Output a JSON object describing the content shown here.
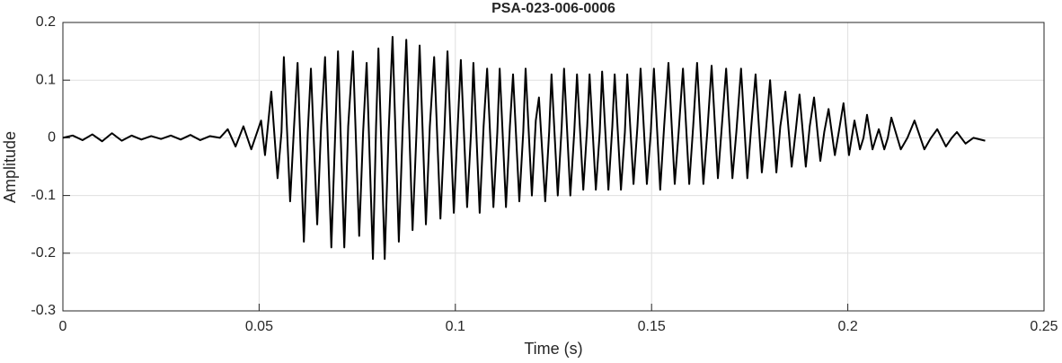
{
  "chart_data": {
    "type": "line",
    "title": "PSA-023-006-0006",
    "xlabel": "Time (s)",
    "ylabel": "Amplitude",
    "color": "#000000",
    "grid": true,
    "xlim": [
      0,
      0.25
    ],
    "xticks": [
      0,
      0.05,
      0.1,
      0.15,
      0.2,
      0.25
    ],
    "ylim": [
      -0.3,
      0.2
    ],
    "yticks": [
      -0.3,
      -0.2,
      -0.1,
      0,
      0.1,
      0.2
    ],
    "x": [
      0,
      0.0025,
      0.005,
      0.0075,
      0.01,
      0.0125,
      0.015,
      0.0175,
      0.02,
      0.0225,
      0.025,
      0.0275,
      0.03,
      0.0325,
      0.035,
      0.0375,
      0.04,
      0.042,
      0.044,
      0.046,
      0.048,
      0.0505,
      0.0515,
      0.0531,
      0.0547,
      0.0557,
      0.0563,
      0.0579,
      0.0589,
      0.0598,
      0.0614,
      0.0624,
      0.0632,
      0.0648,
      0.0658,
      0.0668,
      0.0684,
      0.0694,
      0.0701,
      0.0717,
      0.0727,
      0.0739,
      0.0755,
      0.0765,
      0.0774,
      0.079,
      0.0798,
      0.0804,
      0.082,
      0.083,
      0.084,
      0.0856,
      0.0866,
      0.0875,
      0.0891,
      0.0901,
      0.0909,
      0.0925,
      0.0935,
      0.0946,
      0.0962,
      0.0972,
      0.098,
      0.0996,
      0.1006,
      0.1014,
      0.103,
      0.104,
      0.1046,
      0.1062,
      0.1072,
      0.1081,
      0.1097,
      0.1107,
      0.1113,
      0.1129,
      0.1139,
      0.1147,
      0.1163,
      0.1173,
      0.1179,
      0.1195,
      0.1205,
      0.1213,
      0.1229,
      0.1239,
      0.1245,
      0.1261,
      0.1271,
      0.1277,
      0.1293,
      0.1303,
      0.131,
      0.1326,
      0.1336,
      0.1342,
      0.1358,
      0.1368,
      0.1374,
      0.139,
      0.14,
      0.1406,
      0.1422,
      0.1432,
      0.1438,
      0.1454,
      0.1464,
      0.1472,
      0.1488,
      0.1498,
      0.1506,
      0.1522,
      0.1532,
      0.1543,
      0.1559,
      0.1569,
      0.158,
      0.1596,
      0.1606,
      0.1616,
      0.1632,
      0.1642,
      0.1653,
      0.1669,
      0.1679,
      0.169,
      0.1706,
      0.1716,
      0.1728,
      0.1744,
      0.1754,
      0.1765,
      0.1781,
      0.1791,
      0.1802,
      0.1818,
      0.1828,
      0.1841,
      0.1857,
      0.1867,
      0.1877,
      0.1893,
      0.1903,
      0.1914,
      0.193,
      0.194,
      0.1951,
      0.1967,
      0.1977,
      0.1989,
      0.2003,
      0.201,
      0.2017,
      0.2031,
      0.204,
      0.2049,
      0.2063,
      0.2072,
      0.2079,
      0.2093,
      0.2102,
      0.2111,
      0.2135,
      0.2152,
      0.217,
      0.2195,
      0.2212,
      0.2228,
      0.225,
      0.2265,
      0.2278,
      0.23,
      0.232,
      0.235
    ],
    "values": [
      0,
      0.004,
      -0.004,
      0.006,
      -0.006,
      0.008,
      -0.005,
      0.004,
      -0.003,
      0.003,
      -0.002,
      0.004,
      -0.003,
      0.005,
      -0.004,
      0.003,
      0,
      0.015,
      -0.015,
      0.02,
      -0.02,
      0.03,
      -0.03,
      0.08,
      -0.07,
      0.01,
      0.14,
      -0.11,
      0.02,
      0.13,
      -0.18,
      0.01,
      0.12,
      -0.15,
      0.02,
      0.14,
      -0.19,
      0.01,
      0.15,
      -0.19,
      0.02,
      0.15,
      -0.17,
      0.01,
      0.13,
      -0.21,
      0.02,
      0.155,
      -0.21,
      0.01,
      0.175,
      -0.18,
      0.02,
      0.17,
      -0.16,
      0.01,
      0.16,
      -0.15,
      0.02,
      0.14,
      -0.14,
      0.01,
      0.15,
      -0.13,
      0.02,
      0.135,
      -0.12,
      0.01,
      0.13,
      -0.13,
      0.02,
      0.12,
      -0.12,
      0.01,
      0.12,
      -0.12,
      0.02,
      0.11,
      -0.11,
      0.01,
      0.12,
      -0.1,
      0.03,
      0.07,
      -0.11,
      0.01,
      0.11,
      -0.1,
      0.02,
      0.12,
      -0.1,
      0.01,
      0.11,
      -0.09,
      0.02,
      0.11,
      -0.09,
      0.01,
      0.115,
      -0.09,
      0.02,
      0.11,
      -0.09,
      0.01,
      0.11,
      -0.08,
      0.02,
      0.12,
      -0.08,
      0.01,
      0.12,
      -0.09,
      0.02,
      0.13,
      -0.08,
      0.01,
      0.12,
      -0.08,
      0.02,
      0.13,
      -0.08,
      0.01,
      0.125,
      -0.07,
      0.02,
      0.12,
      -0.07,
      0.01,
      0.12,
      -0.07,
      0.02,
      0.11,
      -0.06,
      0.01,
      0.1,
      -0.06,
      0.02,
      0.08,
      -0.05,
      0.01,
      0.075,
      -0.05,
      0.02,
      0.07,
      -0.04,
      0.01,
      0.05,
      -0.03,
      0.01,
      0.06,
      -0.03,
      0,
      0.03,
      -0.02,
      0,
      0.04,
      -0.02,
      0,
      0.015,
      -0.02,
      0,
      0.035,
      -0.02,
      0,
      0.03,
      -0.02,
      0,
      0.015,
      -0.015,
      0,
      0.01,
      -0.01,
      0,
      -0.005
    ]
  }
}
